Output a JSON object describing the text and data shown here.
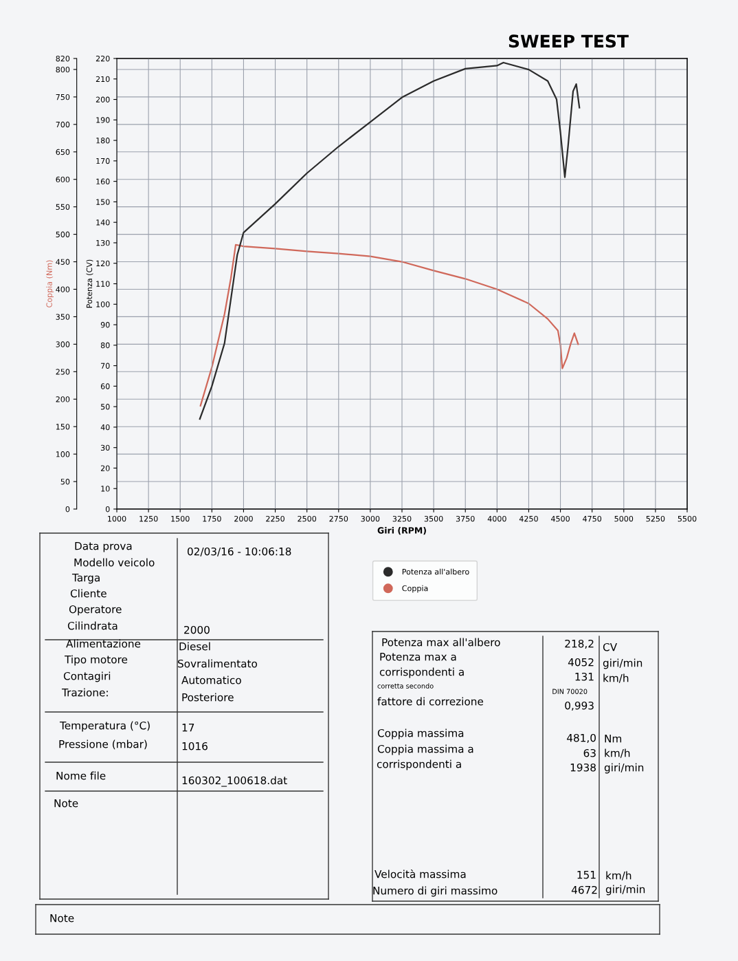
{
  "chart_data": {
    "type": "line",
    "title": "SWEEP TEST",
    "xlabel": "Giri (RPM)",
    "ylabel": "Potenza (CV)",
    "y2label": "Coppia (Nm)",
    "xlim": [
      1000,
      5500
    ],
    "xticks": [
      1000,
      1250,
      1500,
      1750,
      2000,
      2250,
      2500,
      2750,
      3000,
      3250,
      3500,
      3750,
      4000,
      4250,
      4500,
      4750,
      5000,
      5250,
      5500
    ],
    "ylim": [
      0,
      220
    ],
    "yticks": [
      0,
      10,
      20,
      30,
      40,
      50,
      60,
      70,
      80,
      90,
      100,
      110,
      120,
      130,
      140,
      150,
      160,
      170,
      180,
      190,
      200,
      210,
      220
    ],
    "y2lim": [
      0,
      820
    ],
    "y2ticks": [
      0,
      50,
      100,
      150,
      200,
      250,
      300,
      350,
      400,
      450,
      500,
      550,
      600,
      650,
      700,
      750,
      800,
      820
    ],
    "grid": true,
    "legend": "bottom",
    "series": [
      {
        "name": "Potenza all'albero",
        "color": "#2b2b2b",
        "x": [
          1655,
          1750,
          1850,
          1950,
          2000,
          2250,
          2500,
          2750,
          3000,
          3250,
          3500,
          3750,
          4000,
          4050,
          4250,
          4400,
          4470,
          4500,
          4535,
          4560,
          4600,
          4625,
          4650
        ],
        "values": [
          44,
          60,
          81,
          124,
          135,
          149,
          164,
          177,
          189,
          201,
          209,
          215,
          216.5,
          218,
          214.6,
          209,
          200,
          184,
          162,
          177,
          204,
          207.5,
          196
        ]
      },
      {
        "name": "Coppia",
        "color": "#d0685a",
        "axis": "y2",
        "x": [
          1660,
          1750,
          1850,
          1900,
          1938,
          2000,
          2250,
          2500,
          2750,
          3000,
          3250,
          3500,
          3750,
          4000,
          4250,
          4400,
          4480,
          4500,
          4515,
          4550,
          4580,
          4610,
          4640
        ],
        "values": [
          188,
          258,
          355,
          420,
          481,
          478,
          474,
          469,
          465,
          460,
          450,
          434,
          419,
          400,
          374,
          346,
          325,
          299,
          256,
          275,
          300,
          320,
          300
        ]
      }
    ],
    "annotations": [
      "Data prova",
      "02/03/16 - 10:06:18",
      "Modello veicolo",
      "Targa",
      "Cliente",
      "Operatore",
      "Cilindrata",
      "2000",
      "Alimentazione",
      "Diesel",
      "Tipo motore",
      "Sovralimentato",
      "Contagiri",
      "Automatico",
      "Trazione:",
      "Posteriore",
      "Temperatura (°C)",
      "17",
      "Pressione (mbar)",
      "1016",
      "Nome file",
      "160302_100618.dat",
      "Note",
      "Potenza max all'albero",
      "218,2",
      "CV",
      "Potenza max a",
      "4052",
      "giri/min",
      "corrispondenti a",
      "131",
      "km/h",
      "corretta secondo",
      "DIN 70020",
      "fattore di correzione",
      "0,993",
      "Coppia massima",
      "481,0",
      "Nm",
      "Coppia massima a",
      "63",
      "km/h",
      "corrispondenti a",
      "1938",
      "giri/min",
      "Velocità massima",
      "151",
      "km/h",
      "Numero di giri massimo",
      "4672",
      "giri/min",
      "Note"
    ]
  }
}
